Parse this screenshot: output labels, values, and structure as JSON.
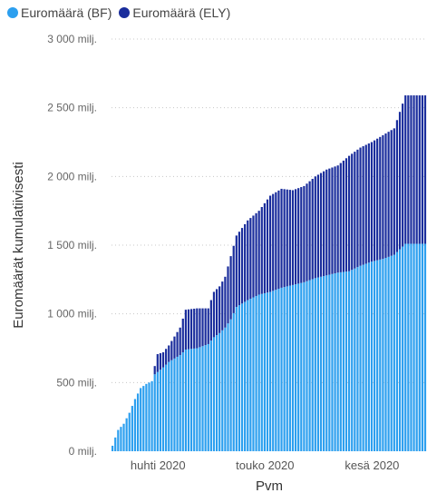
{
  "legend": {
    "items": [
      {
        "label": "Euromäärä (BF)",
        "color": "#2C9FEF"
      },
      {
        "label": "Euromäärä (ELY)",
        "color": "#1A2D9C"
      }
    ]
  },
  "chart_data": {
    "type": "bar",
    "stacked": true,
    "cumulative": true,
    "xlabel": "Pvm",
    "ylabel": "Euromäärät kumulatiivisesti",
    "ylim": [
      0,
      3000000000
    ],
    "y_ticks": [
      {
        "value": 0,
        "label": "0 milj."
      },
      {
        "value": 500000000,
        "label": "500 milj."
      },
      {
        "value": 1000000000,
        "label": "1 000 milj."
      },
      {
        "value": 1500000000,
        "label": "1 500 milj."
      },
      {
        "value": 2000000000,
        "label": "2 000 milj."
      },
      {
        "value": 2500000000,
        "label": "2 500 milj."
      },
      {
        "value": 3000000000,
        "label": "3 000 milj."
      }
    ],
    "x_tick_labels": [
      {
        "index": 16,
        "label": "huhti 2020"
      },
      {
        "index": 54,
        "label": "touko 2020"
      },
      {
        "index": 92,
        "label": "kesä 2020"
      }
    ],
    "grid": true,
    "legend_position": "top-left",
    "series": [
      {
        "name": "Euromäärä (BF)",
        "color": "#2C9FEF"
      },
      {
        "name": "Euromäärä (ELY)",
        "color": "#1A2D9C"
      }
    ],
    "bf_knots": [
      [
        0,
        40
      ],
      [
        1,
        100
      ],
      [
        2,
        155
      ],
      [
        4,
        200
      ],
      [
        6,
        280
      ],
      [
        8,
        380
      ],
      [
        10,
        460
      ],
      [
        12,
        490
      ],
      [
        14,
        510
      ],
      [
        15,
        560
      ],
      [
        18,
        610
      ],
      [
        20,
        650
      ],
      [
        24,
        700
      ],
      [
        26,
        740
      ],
      [
        30,
        750
      ],
      [
        34,
        780
      ],
      [
        36,
        830
      ],
      [
        38,
        860
      ],
      [
        40,
        900
      ],
      [
        42,
        960
      ],
      [
        44,
        1050
      ],
      [
        48,
        1100
      ],
      [
        52,
        1140
      ],
      [
        56,
        1160
      ],
      [
        60,
        1190
      ],
      [
        64,
        1210
      ],
      [
        68,
        1230
      ],
      [
        72,
        1260
      ],
      [
        76,
        1280
      ],
      [
        80,
        1300
      ],
      [
        84,
        1310
      ],
      [
        88,
        1350
      ],
      [
        92,
        1380
      ],
      [
        96,
        1400
      ],
      [
        100,
        1430
      ],
      [
        104,
        1510
      ],
      [
        111,
        1510
      ]
    ],
    "ely_knots": [
      [
        0,
        0
      ],
      [
        14,
        0
      ],
      [
        15,
        60
      ],
      [
        16,
        130
      ],
      [
        18,
        110
      ],
      [
        20,
        120
      ],
      [
        24,
        200
      ],
      [
        26,
        290
      ],
      [
        30,
        290
      ],
      [
        34,
        260
      ],
      [
        36,
        330
      ],
      [
        38,
        340
      ],
      [
        40,
        370
      ],
      [
        42,
        460
      ],
      [
        44,
        520
      ],
      [
        48,
        580
      ],
      [
        52,
        610
      ],
      [
        56,
        700
      ],
      [
        60,
        720
      ],
      [
        64,
        690
      ],
      [
        68,
        700
      ],
      [
        72,
        740
      ],
      [
        76,
        770
      ],
      [
        80,
        780
      ],
      [
        84,
        840
      ],
      [
        88,
        860
      ],
      [
        92,
        870
      ],
      [
        96,
        900
      ],
      [
        100,
        920
      ],
      [
        104,
        1080
      ],
      [
        111,
        1080
      ]
    ]
  }
}
